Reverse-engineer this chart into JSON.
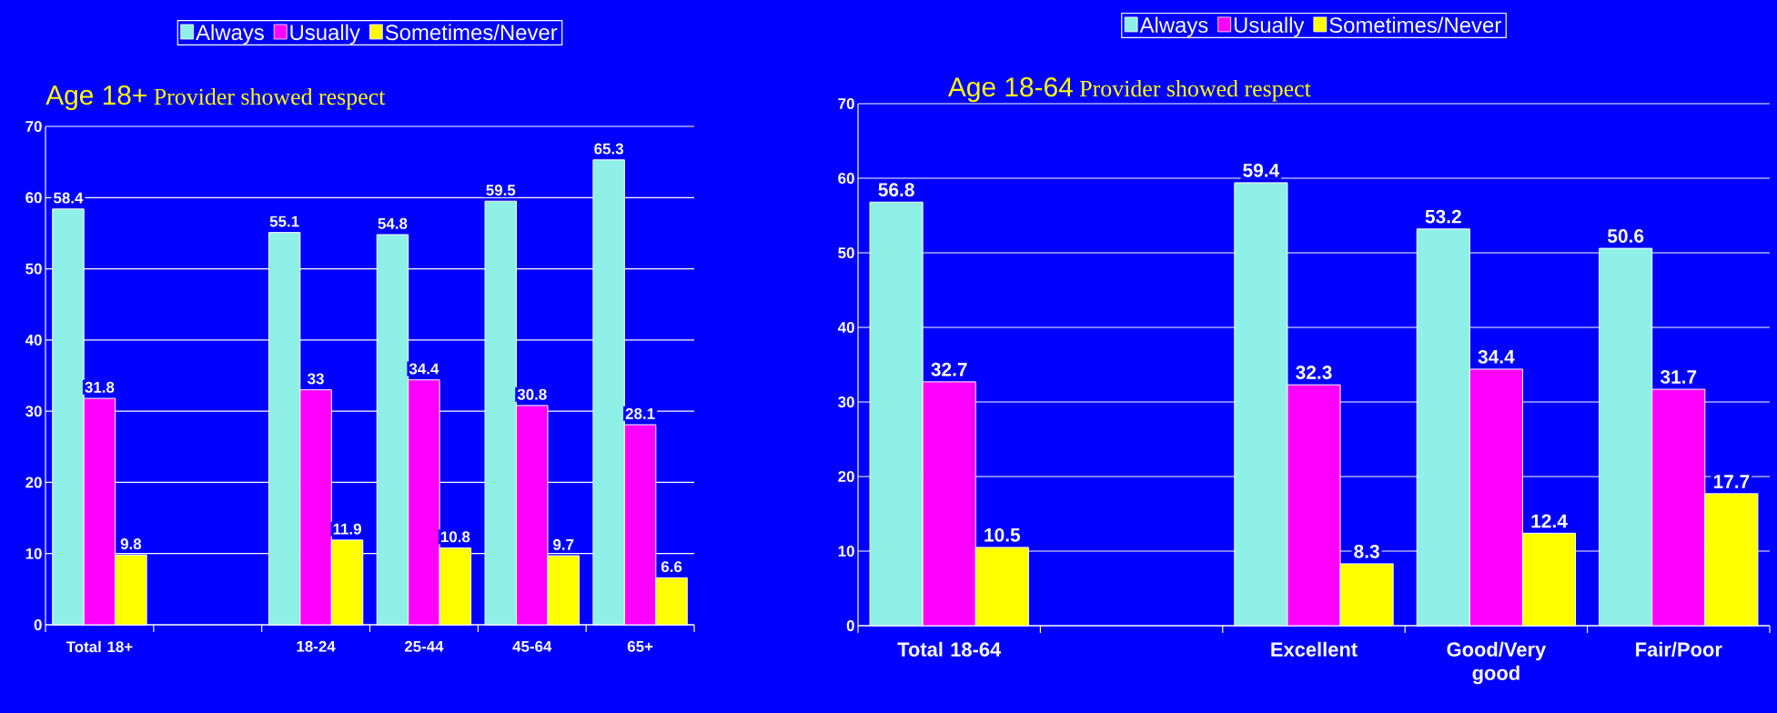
{
  "chart_data": [
    {
      "type": "bar",
      "title": "Age 18+",
      "subtitle": "Provider showed respect",
      "categories": [
        "Total 18+",
        null,
        "18-24",
        "25-44",
        "45-64",
        "65+"
      ],
      "series": [
        {
          "name": "Always",
          "color": "#8ff0e8",
          "values": [
            58.4,
            null,
            55.1,
            54.8,
            59.5,
            65.3
          ]
        },
        {
          "name": "Usually",
          "color": "#ff00ff",
          "values": [
            31.8,
            null,
            33,
            34.4,
            30.8,
            28.1
          ]
        },
        {
          "name": "Sometimes/Never",
          "color": "#ffff00",
          "values": [
            9.8,
            null,
            11.9,
            10.8,
            9.7,
            6.6
          ]
        }
      ],
      "ylim": [
        0,
        70
      ],
      "yticks": [
        0,
        10,
        20,
        30,
        40,
        50,
        60,
        70
      ],
      "grid": "y",
      "legend": "top",
      "data_labels": true
    },
    {
      "type": "bar",
      "title": "Age 18-64",
      "subtitle": "Provider showed respect",
      "categories": [
        "Total 18-64",
        null,
        "Excellent",
        "Good/Very good",
        "Fair/Poor"
      ],
      "series": [
        {
          "name": "Always",
          "color": "#8ff0e8",
          "values": [
            56.8,
            null,
            59.4,
            53.2,
            50.6
          ]
        },
        {
          "name": "Usually",
          "color": "#ff00ff",
          "values": [
            32.7,
            null,
            32.3,
            34.4,
            31.7
          ]
        },
        {
          "name": "Sometimes/Never",
          "color": "#ffff00",
          "values": [
            10.5,
            null,
            8.3,
            12.4,
            17.7
          ]
        }
      ],
      "ylim": [
        0,
        70
      ],
      "yticks": [
        0,
        10,
        20,
        30,
        40,
        50,
        60,
        70
      ],
      "grid": "y",
      "legend": "top",
      "data_labels": true
    }
  ]
}
